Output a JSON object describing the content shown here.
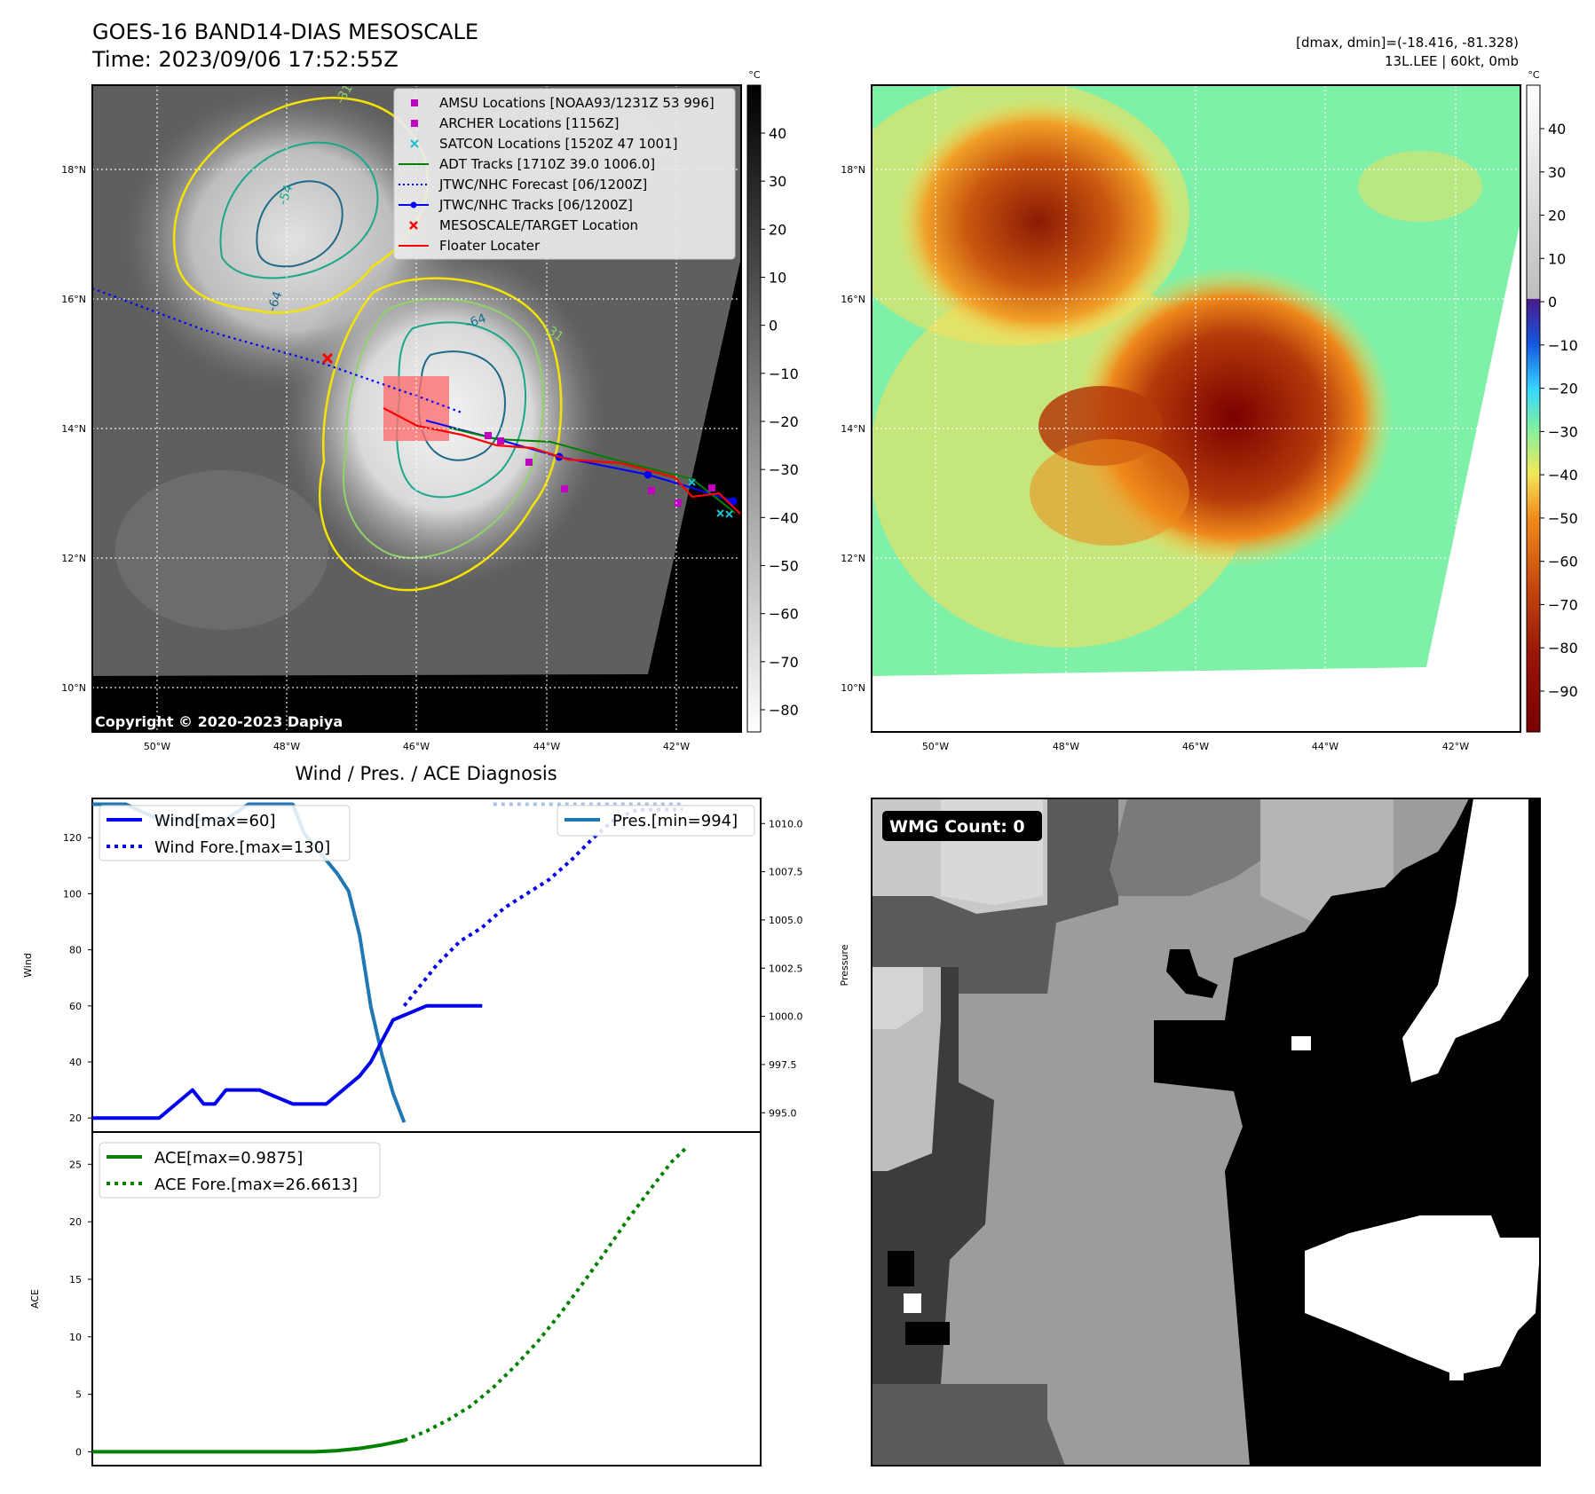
{
  "header": {
    "title_line1": "GOES-16 BAND14-DIAS MESOSCALE",
    "title_line2": "Time: 2023/09/06 17:52:55Z",
    "info_line1": "[dmax, dmin]=(-18.416, -81.328)",
    "info_line2": "13L.LEE | 60kt, 0mb"
  },
  "maps": {
    "lat_labels": [
      "18°N",
      "16°N",
      "14°N",
      "12°N",
      "10°N"
    ],
    "lon_labels": [
      "50°W",
      "48°W",
      "46°W",
      "44°W",
      "42°W"
    ],
    "copyright": "Copyright © 2020-2023 Dapiya",
    "colorbar_unit": "°C",
    "gray_colorbar_ticks": [
      "40",
      "30",
      "20",
      "10",
      "0",
      "−10",
      "−20",
      "−30",
      "−40",
      "−50",
      "−60",
      "−70",
      "−80"
    ],
    "color_colorbar_ticks": [
      "40",
      "30",
      "20",
      "10",
      "0",
      "−10",
      "−20",
      "−30",
      "−40",
      "−50",
      "−60",
      "−70",
      "−80",
      "−90"
    ],
    "contour_labels": [
      "-54",
      "-64",
      "-64",
      "-31",
      "-31"
    ],
    "legend": [
      {
        "label": "AMSU Locations [NOAA93/1231Z 53 996]",
        "color": "#c000c0",
        "marker": "square"
      },
      {
        "label": "ARCHER Locations [1156Z]",
        "color": "#c000c0",
        "marker": "square"
      },
      {
        "label": "SATCON Locations [1520Z 47 1001]",
        "color": "#17becf",
        "marker": "x"
      },
      {
        "label": "ADT Tracks [1710Z 39.0 1006.0]",
        "color": "#008000",
        "marker": "line"
      },
      {
        "label": "JTWC/NHC Forecast [06/1200Z]",
        "color": "#0000ff",
        "marker": "dotted"
      },
      {
        "label": "JTWC/NHC Tracks [06/1200Z]",
        "color": "#0000ff",
        "marker": "line-dot"
      },
      {
        "label": "MESOSCALE/TARGET Location",
        "color": "#ff0000",
        "marker": "x"
      },
      {
        "label": "Floater Locater",
        "color": "#ff0000",
        "marker": "line"
      }
    ]
  },
  "diagnosis": {
    "title": "Wind / Pres. / ACE Diagnosis",
    "wind_legend": "Wind[max=60]",
    "wind_fore_legend": "Wind Fore.[max=130]",
    "pres_legend": "Pres.[min=994]",
    "ace_legend": "ACE[max=0.9875]",
    "ace_fore_legend": "ACE Fore.[max=26.6613]",
    "wind_ylabel": "Wind",
    "pres_ylabel": "Pressure",
    "ace_ylabel": "ACE"
  },
  "wmg": {
    "label": "WMG Count: 0"
  },
  "colors": {
    "wind": "#0000ee",
    "pressure": "#1f77b4",
    "ace": "#008000"
  },
  "chart_data": [
    {
      "type": "line",
      "title": "Wind / Pres. / ACE Diagnosis",
      "ylabel": "Wind",
      "ylim": [
        15,
        134
      ],
      "yticks": [
        20,
        40,
        60,
        80,
        100,
        120
      ],
      "series": [
        {
          "name": "Wind[max=60]",
          "style": "solid",
          "color": "#0000ee",
          "x": [
            0,
            3,
            6,
            9,
            10,
            11,
            12,
            15,
            18,
            21,
            24,
            25,
            27,
            30,
            33,
            35
          ],
          "values": [
            20,
            20,
            20,
            30,
            25,
            25,
            30,
            30,
            25,
            25,
            35,
            40,
            55,
            60,
            60,
            60
          ]
        },
        {
          "name": "Wind Fore.[max=130]",
          "style": "dotted",
          "color": "#0000ee",
          "x": [
            28,
            29,
            31,
            33,
            35,
            37,
            39,
            41,
            43,
            45,
            47,
            49,
            51,
            53
          ],
          "values": [
            60,
            65,
            75,
            83,
            88,
            95,
            100,
            105,
            112,
            120,
            127,
            130,
            130,
            130
          ]
        }
      ]
    },
    {
      "type": "line",
      "ylabel": "Pressure",
      "ylim": [
        994,
        1011.3
      ],
      "yticks": [
        995.0,
        997.5,
        1000.0,
        1002.5,
        1005.0,
        1007.5,
        1010.0
      ],
      "series": [
        {
          "name": "Pres.[min=994]",
          "style": "solid",
          "color": "#1f77b4",
          "x": [
            0,
            3,
            6,
            9,
            12,
            14,
            16,
            18,
            19,
            20,
            22,
            23,
            24,
            25,
            26,
            27,
            28
          ],
          "values": [
            1011,
            1011,
            1010.2,
            1010.2,
            1010.2,
            1011,
            1011,
            1011,
            1009.5,
            1008.8,
            1007.4,
            1006.5,
            1004.2,
            1000.5,
            998,
            996,
            994.5
          ]
        },
        {
          "name": "",
          "style": "dotted",
          "color": "#aac4e8",
          "x": [
            36,
            39,
            42,
            45,
            48,
            51,
            53
          ],
          "values": [
            1011,
            1011,
            1011,
            1011,
            1011,
            1011,
            1011
          ]
        }
      ]
    },
    {
      "type": "line",
      "ylabel": "ACE",
      "ylim": [
        -1.2,
        27.8
      ],
      "yticks": [
        0,
        5,
        10,
        15,
        20,
        25
      ],
      "series": [
        {
          "name": "ACE[max=0.9875]",
          "style": "solid",
          "color": "#008000",
          "x": [
            0,
            5,
            10,
            15,
            20,
            22,
            24,
            26,
            28
          ],
          "values": [
            0,
            0,
            0,
            0,
            0,
            0.1,
            0.3,
            0.6,
            1.0
          ]
        },
        {
          "name": "ACE Fore.[max=26.6613]",
          "style": "dotted",
          "color": "#008000",
          "x": [
            28,
            30,
            32,
            34,
            36,
            38,
            40,
            42,
            44,
            46,
            48,
            50,
            52,
            53.5
          ],
          "values": [
            1.0,
            1.8,
            2.8,
            4.0,
            5.6,
            7.5,
            9.6,
            12.0,
            14.6,
            17.3,
            20.1,
            22.7,
            25.2,
            26.6
          ]
        }
      ]
    }
  ]
}
